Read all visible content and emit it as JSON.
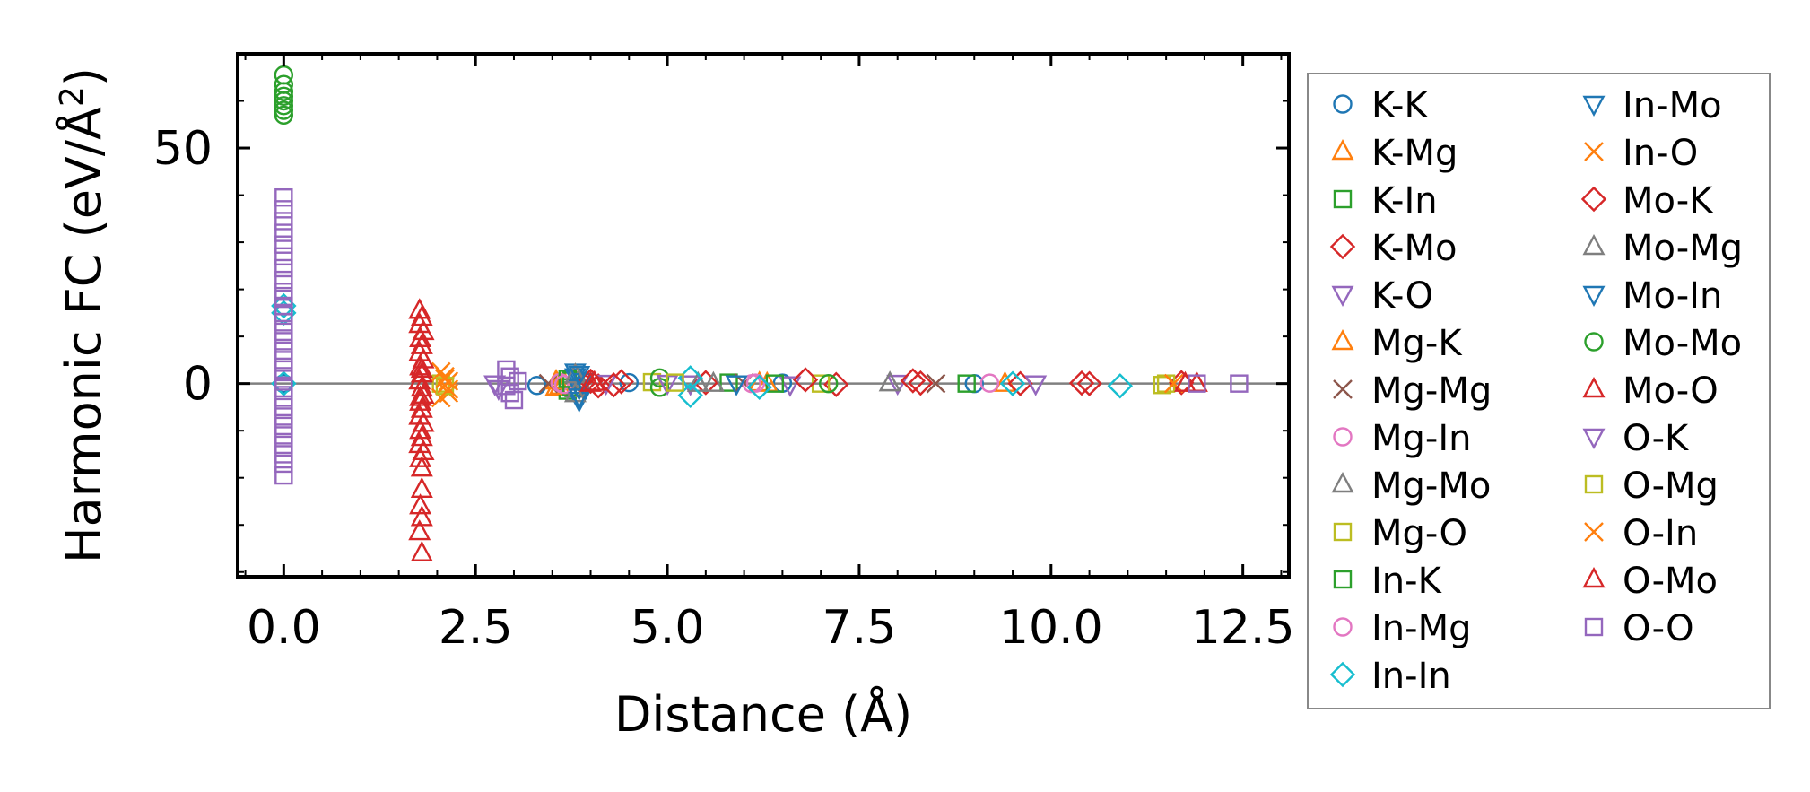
{
  "chart_data": {
    "type": "scatter",
    "title": "",
    "xlabel": "Distance (Å)",
    "ylabel": "Harmonic FC (eV/Å²)",
    "xlim": [
      -0.6,
      13.1
    ],
    "ylim": [
      -41,
      70
    ],
    "xticks": [
      0.0,
      2.5,
      5.0,
      7.5,
      10.0,
      12.5
    ],
    "xtick_labels": [
      "0.0",
      "2.5",
      "5.0",
      "7.5",
      "10.0",
      "12.5"
    ],
    "yticks": [
      0,
      50
    ],
    "ytick_labels": [
      "0",
      "50"
    ],
    "reference_line_y": 0,
    "legend_position": "outside-right",
    "series": [
      {
        "name": "K-K",
        "marker": "circle",
        "color": "#1f77b4",
        "points": [
          [
            0.0,
            0.0
          ],
          [
            3.3,
            -0.4
          ],
          [
            4.5,
            0.2
          ],
          [
            6.5,
            0.1
          ],
          [
            9.0,
            0.0
          ]
        ]
      },
      {
        "name": "K-Mg",
        "marker": "triangle-up",
        "color": "#ff7f0e",
        "points": [
          [
            3.55,
            -0.8
          ],
          [
            3.65,
            0.3
          ],
          [
            6.2,
            0.1
          ],
          [
            9.4,
            0.0
          ]
        ]
      },
      {
        "name": "K-In",
        "marker": "square",
        "color": "#2ca02c",
        "points": [
          [
            3.7,
            -1.5
          ],
          [
            3.75,
            0.6
          ],
          [
            5.8,
            0.2
          ],
          [
            8.9,
            0.0
          ]
        ]
      },
      {
        "name": "K-Mo",
        "marker": "diamond",
        "color": "#d62728",
        "points": [
          [
            3.9,
            0.0
          ],
          [
            4.1,
            -0.5
          ],
          [
            4.4,
            0.4
          ],
          [
            5.5,
            0.2
          ],
          [
            7.2,
            -0.2
          ],
          [
            8.3,
            0.1
          ],
          [
            9.6,
            0.0
          ],
          [
            10.4,
            0.1
          ]
        ]
      },
      {
        "name": "K-O",
        "marker": "triangle-down",
        "color": "#9467bd",
        "points": [
          [
            4.2,
            0.1
          ],
          [
            5.3,
            0.0
          ],
          [
            6.6,
            -0.2
          ],
          [
            8.0,
            0.1
          ],
          [
            9.8,
            0.0
          ]
        ]
      },
      {
        "name": "Mg-K",
        "marker": "triangle-up",
        "color": "#ff7f0e",
        "points": [
          [
            3.55,
            0.5
          ],
          [
            3.6,
            -0.6
          ],
          [
            6.3,
            0.0
          ]
        ]
      },
      {
        "name": "Mg-Mg",
        "marker": "x",
        "color": "#8c564b",
        "points": [
          [
            3.45,
            0.0
          ],
          [
            6.0,
            0.1
          ],
          [
            8.5,
            0.0
          ]
        ]
      },
      {
        "name": "Mg-In",
        "marker": "circle",
        "color": "#e377c2",
        "points": [
          [
            3.6,
            0.2
          ],
          [
            6.1,
            0.0
          ],
          [
            9.2,
            0.1
          ]
        ]
      },
      {
        "name": "Mg-Mo",
        "marker": "triangle-up",
        "color": "#7f7f7f",
        "points": [
          [
            3.8,
            -1.2
          ],
          [
            3.85,
            0.8
          ],
          [
            5.4,
            0.0
          ],
          [
            7.9,
            0.1
          ]
        ]
      },
      {
        "name": "Mg-O",
        "marker": "square",
        "color": "#bcbd22",
        "points": [
          [
            2.05,
            0.0
          ],
          [
            4.8,
            0.3
          ],
          [
            7.0,
            0.0
          ],
          [
            11.45,
            -0.3
          ]
        ]
      },
      {
        "name": "In-K",
        "marker": "square",
        "color": "#2ca02c",
        "points": [
          [
            3.7,
            1.0
          ],
          [
            3.75,
            -0.8
          ],
          [
            6.4,
            0.0
          ]
        ]
      },
      {
        "name": "In-Mg",
        "marker": "circle",
        "color": "#e377c2",
        "points": [
          [
            3.65,
            -0.2
          ],
          [
            6.15,
            0.1
          ]
        ]
      },
      {
        "name": "In-In",
        "marker": "diamond",
        "color": "#17becf",
        "points": [
          [
            0.0,
            16.5
          ],
          [
            0.0,
            15.0
          ],
          [
            0.0,
            0.0
          ],
          [
            5.3,
            1.2
          ],
          [
            5.3,
            -2.5
          ],
          [
            6.2,
            -0.8
          ],
          [
            9.5,
            0.0
          ],
          [
            10.9,
            -0.5
          ]
        ]
      },
      {
        "name": "In-Mo",
        "marker": "triangle-down",
        "color": "#1f77b4",
        "points": [
          [
            3.8,
            2.5
          ],
          [
            3.8,
            1.5
          ],
          [
            3.85,
            -1.0
          ],
          [
            3.85,
            -3.5
          ],
          [
            3.9,
            0.5
          ]
        ]
      },
      {
        "name": "In-O",
        "marker": "x",
        "color": "#ff7f0e",
        "points": [
          [
            2.05,
            2.5
          ],
          [
            2.1,
            1.5
          ],
          [
            2.1,
            -0.5
          ],
          [
            2.15,
            -2.0
          ],
          [
            2.15,
            0.5
          ],
          [
            2.05,
            -3.0
          ]
        ]
      },
      {
        "name": "Mo-K",
        "marker": "diamond",
        "color": "#d62728",
        "points": [
          [
            4.0,
            0.5
          ],
          [
            4.3,
            -0.3
          ],
          [
            6.8,
            0.8
          ],
          [
            8.2,
            0.6
          ],
          [
            10.5,
            0.0
          ],
          [
            11.7,
            0.2
          ]
        ]
      },
      {
        "name": "Mo-Mg",
        "marker": "triangle-up",
        "color": "#7f7f7f",
        "points": [
          [
            3.8,
            1.8
          ],
          [
            3.8,
            -2.2
          ],
          [
            5.6,
            0.0
          ]
        ]
      },
      {
        "name": "Mo-In",
        "marker": "triangle-down",
        "color": "#1f77b4",
        "points": [
          [
            3.85,
            2.0
          ],
          [
            3.85,
            -2.8
          ],
          [
            5.9,
            0.0
          ]
        ]
      },
      {
        "name": "Mo-Mo",
        "marker": "circle",
        "color": "#2ca02c",
        "points": [
          [
            0.0,
            65.5
          ],
          [
            0.0,
            63.5
          ],
          [
            0.0,
            62.0
          ],
          [
            0.0,
            61.0
          ],
          [
            0.0,
            60.0
          ],
          [
            0.0,
            59.0
          ],
          [
            0.0,
            58.0
          ],
          [
            0.0,
            57.0
          ],
          [
            4.9,
            1.2
          ],
          [
            4.9,
            -0.8
          ],
          [
            7.1,
            0.0
          ]
        ]
      },
      {
        "name": "Mo-O",
        "marker": "triangle-up",
        "color": "#d62728",
        "points": [
          [
            1.77,
            15.5
          ],
          [
            1.8,
            14.0
          ],
          [
            1.77,
            12.5
          ],
          [
            1.82,
            11.0
          ],
          [
            1.78,
            9.5
          ],
          [
            1.8,
            8.0
          ],
          [
            1.77,
            6.5
          ],
          [
            1.82,
            5.0
          ],
          [
            1.78,
            3.5
          ],
          [
            1.8,
            2.0
          ],
          [
            1.77,
            0.5
          ],
          [
            1.8,
            -1.0
          ],
          [
            1.82,
            -2.5
          ],
          [
            1.78,
            -4.0
          ],
          [
            1.8,
            -5.5
          ],
          [
            1.77,
            -7.0
          ],
          [
            1.82,
            -8.5
          ],
          [
            1.78,
            -10.0
          ],
          [
            1.8,
            -11.5
          ],
          [
            1.77,
            -13.0
          ],
          [
            1.82,
            -14.5
          ],
          [
            1.78,
            -16.0
          ],
          [
            1.8,
            -22.5
          ],
          [
            1.78,
            -26.0
          ],
          [
            1.8,
            -28.5
          ],
          [
            1.77,
            -31.5
          ],
          [
            1.8,
            -36.0
          ],
          [
            4.0,
            0.0
          ],
          [
            11.9,
            0.0
          ]
        ]
      },
      {
        "name": "O-K",
        "marker": "triangle-down",
        "color": "#9467bd",
        "points": [
          [
            2.75,
            0.0
          ],
          [
            2.8,
            -1.0
          ],
          [
            5.0,
            0.1
          ]
        ]
      },
      {
        "name": "O-Mg",
        "marker": "square",
        "color": "#bcbd22",
        "points": [
          [
            2.1,
            -0.5
          ],
          [
            5.1,
            0.2
          ],
          [
            11.5,
            0.0
          ]
        ]
      },
      {
        "name": "O-In",
        "marker": "x",
        "color": "#ff7f0e",
        "points": [
          [
            2.1,
            1.0
          ],
          [
            2.15,
            -1.2
          ],
          [
            11.6,
            0.0
          ]
        ]
      },
      {
        "name": "O-Mo",
        "marker": "triangle-up",
        "color": "#d62728",
        "points": [
          [
            1.8,
            3.0
          ],
          [
            1.78,
            -3.0
          ],
          [
            1.8,
            -18.0
          ],
          [
            4.05,
            0.2
          ],
          [
            11.75,
            0.0
          ]
        ]
      },
      {
        "name": "O-O",
        "marker": "square",
        "color": "#9467bd",
        "points": [
          [
            0.0,
            39.5
          ],
          [
            0.0,
            37.0
          ],
          [
            0.0,
            34.5
          ],
          [
            0.0,
            32.0
          ],
          [
            0.0,
            29.5
          ],
          [
            0.0,
            27.0
          ],
          [
            0.0,
            24.5
          ],
          [
            0.0,
            22.0
          ],
          [
            0.0,
            19.5
          ],
          [
            0.0,
            18.0
          ],
          [
            0.0,
            16.5
          ],
          [
            0.0,
            15.0
          ],
          [
            0.0,
            13.0
          ],
          [
            0.0,
            11.0
          ],
          [
            0.0,
            9.0
          ],
          [
            0.0,
            7.0
          ],
          [
            0.0,
            5.0
          ],
          [
            0.0,
            3.0
          ],
          [
            0.0,
            1.0
          ],
          [
            0.0,
            -1.0
          ],
          [
            0.0,
            -3.0
          ],
          [
            0.0,
            -5.0
          ],
          [
            0.0,
            -7.0
          ],
          [
            0.0,
            -9.0
          ],
          [
            0.0,
            -11.0
          ],
          [
            0.0,
            -13.0
          ],
          [
            0.0,
            -15.0
          ],
          [
            0.0,
            -17.0
          ],
          [
            0.0,
            -19.5
          ],
          [
            2.9,
            3.0
          ],
          [
            2.95,
            1.5
          ],
          [
            2.9,
            -0.5
          ],
          [
            2.95,
            -2.0
          ],
          [
            3.0,
            -3.5
          ],
          [
            3.05,
            0.5
          ],
          [
            11.9,
            0.0
          ],
          [
            12.45,
            0.0
          ]
        ]
      }
    ]
  }
}
